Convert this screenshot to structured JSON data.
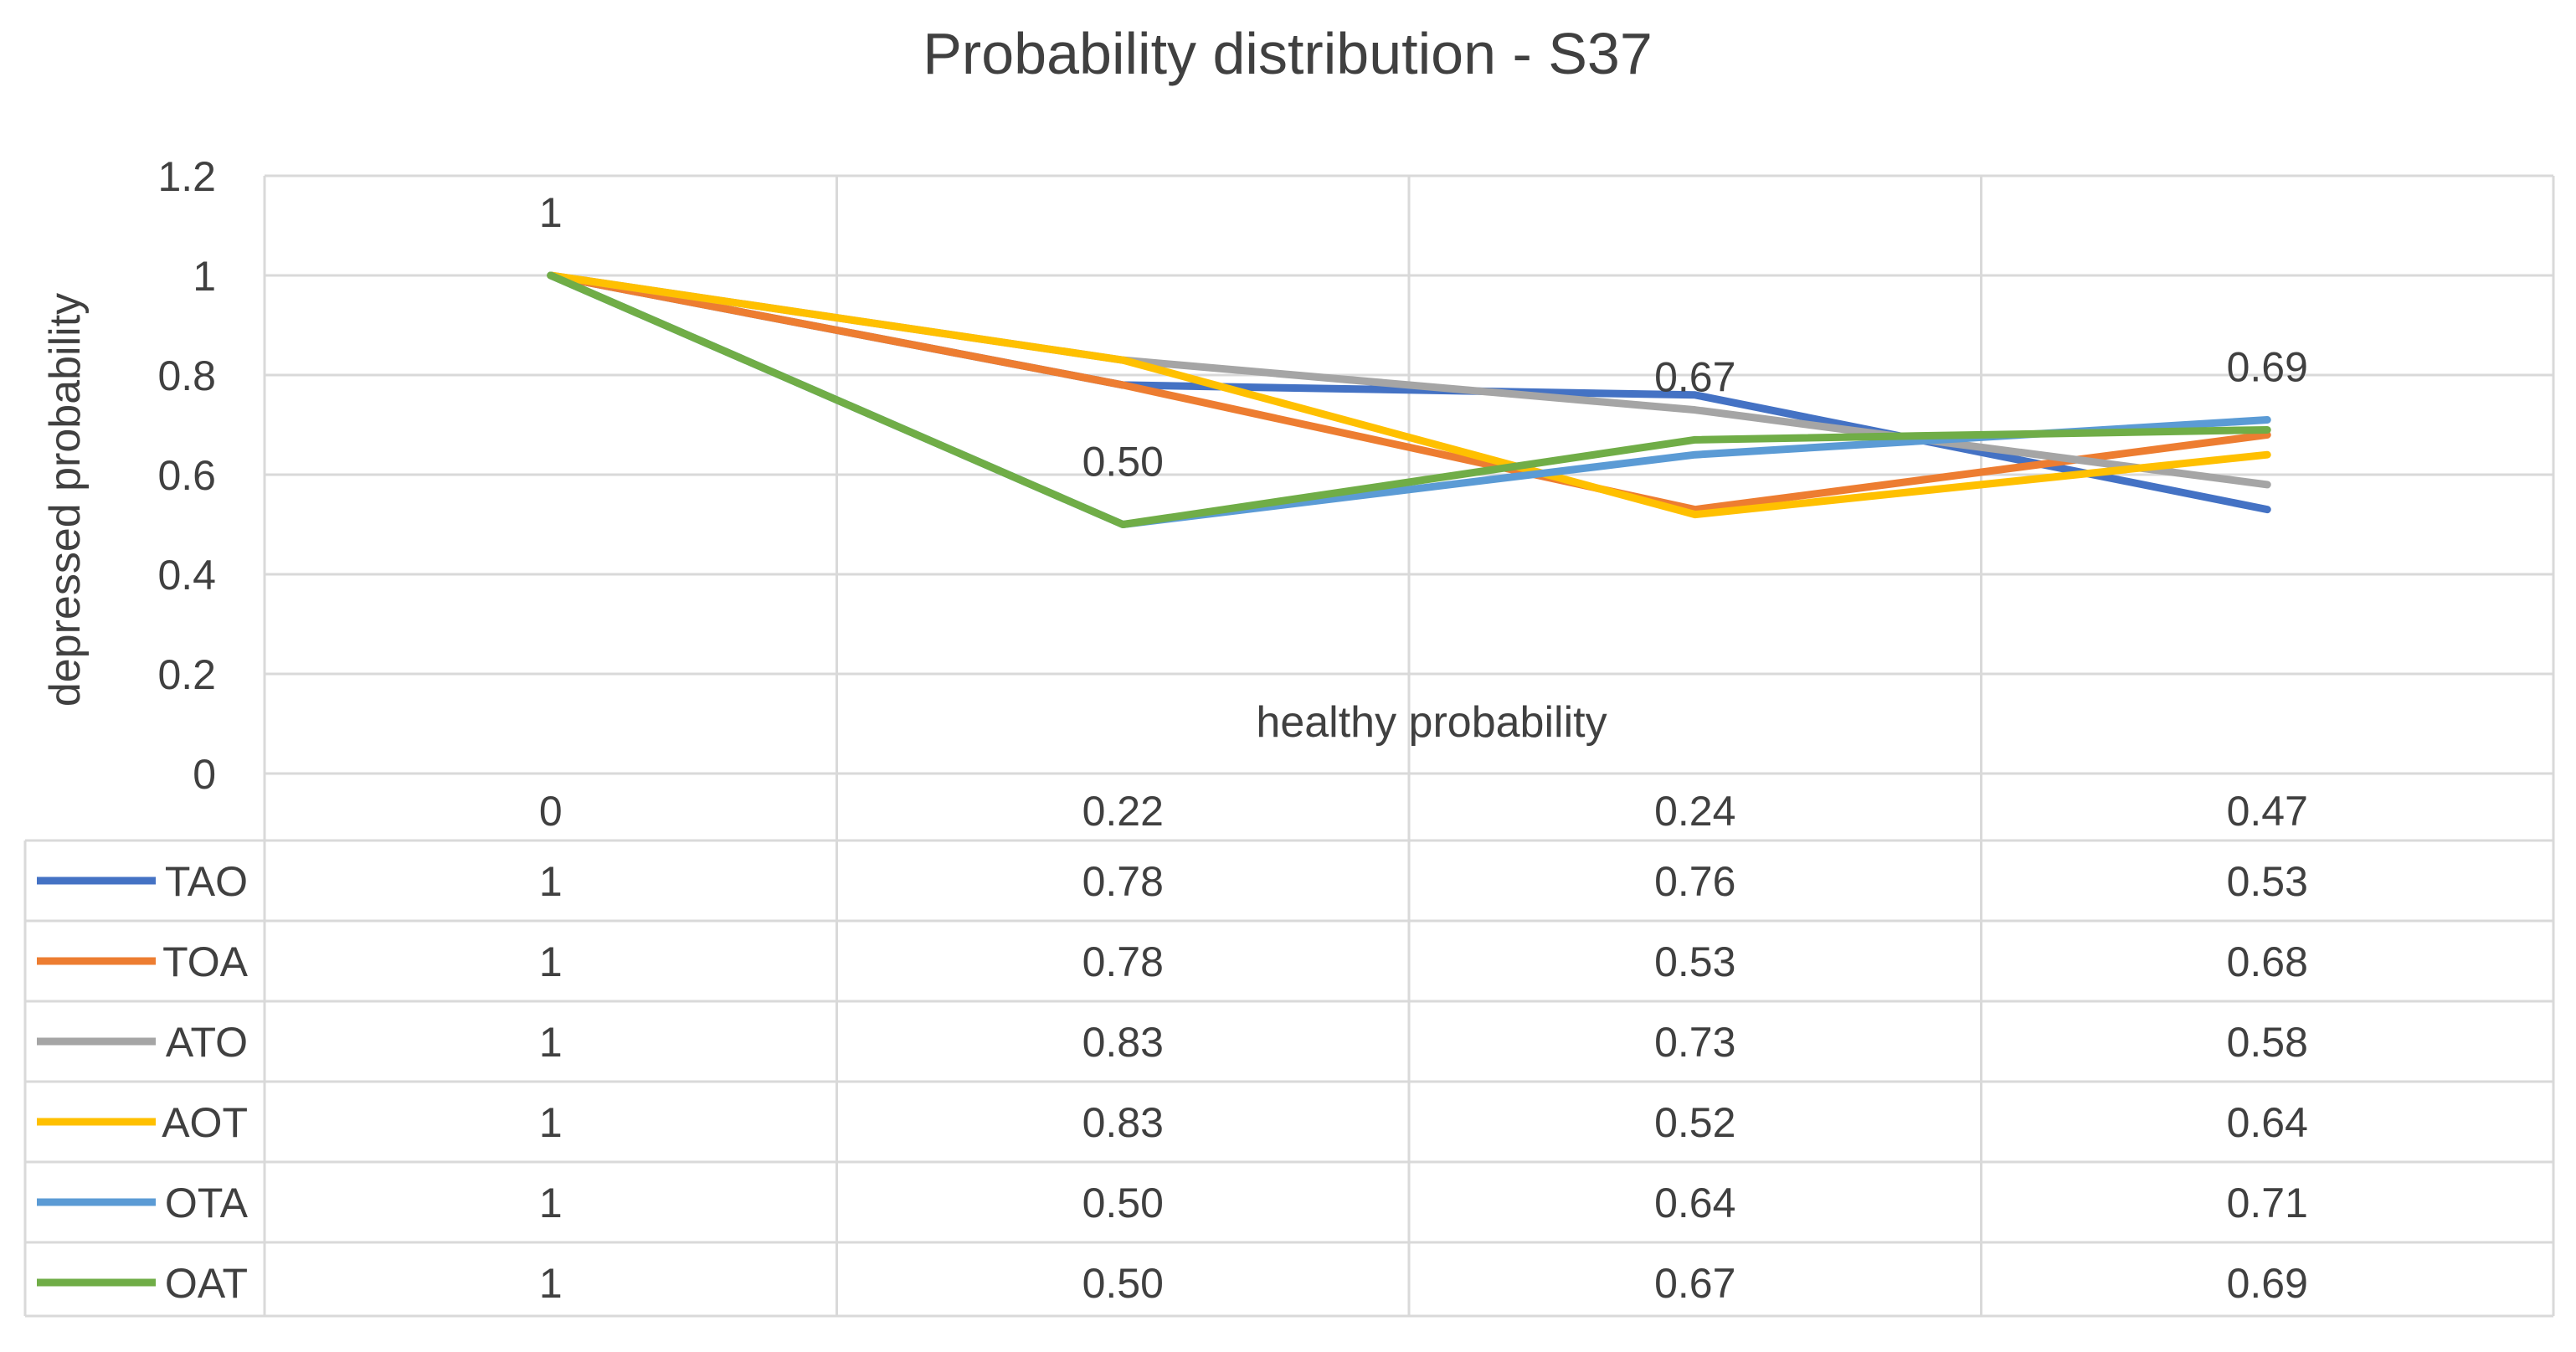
{
  "chart_data": {
    "type": "line",
    "title": "Probability distribution - S37",
    "xlabel": "healthy probability",
    "ylabel": "depressed probability",
    "ylim": [
      0,
      1.2
    ],
    "yticks": [
      "0",
      "0.2",
      "0.4",
      "0.6",
      "0.8",
      "1",
      "1.2"
    ],
    "categories": [
      "0",
      "0.22",
      "0.24",
      "0.47"
    ],
    "grid": true,
    "legend": "data-table",
    "series": [
      {
        "name": "TAO",
        "color": "#4472C4",
        "values": [
          1,
          0.78,
          0.76,
          0.53
        ],
        "labels": [
          "1",
          "0.78",
          "0.76",
          "0.53"
        ]
      },
      {
        "name": "TOA",
        "color": "#ED7D31",
        "values": [
          1,
          0.78,
          0.53,
          0.68
        ],
        "labels": [
          "1",
          "0.78",
          "0.53",
          "0.68"
        ]
      },
      {
        "name": "ATO",
        "color": "#A5A5A5",
        "values": [
          1,
          0.83,
          0.73,
          0.58
        ],
        "labels": [
          "1",
          "0.83",
          "0.73",
          "0.58"
        ]
      },
      {
        "name": "AOT",
        "color": "#FFC000",
        "values": [
          1,
          0.83,
          0.52,
          0.64
        ],
        "labels": [
          "1",
          "0.83",
          "0.52",
          "0.64"
        ]
      },
      {
        "name": "OTA",
        "color": "#5B9BD5",
        "values": [
          1,
          0.5,
          0.64,
          0.71
        ],
        "labels": [
          "1",
          "0.50",
          "0.64",
          "0.71"
        ]
      },
      {
        "name": "OAT",
        "color": "#70AD47",
        "values": [
          1,
          0.5,
          0.67,
          0.69
        ],
        "labels": [
          "1",
          "0.50",
          "0.67",
          "0.69"
        ]
      }
    ],
    "data_labels": {
      "series": "OAT",
      "values": [
        "1",
        "0.50",
        "0.67",
        "0.69"
      ]
    }
  }
}
